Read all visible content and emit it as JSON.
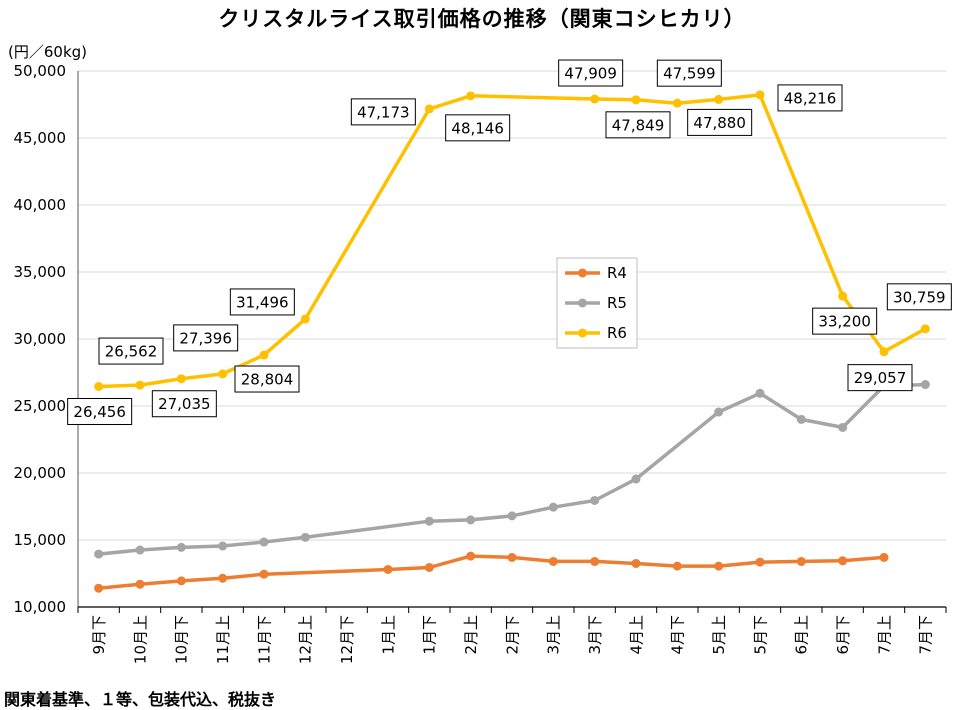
{
  "chart_data": {
    "type": "line",
    "title": "クリスタルライス取引価格の推移（関東コシヒカリ）",
    "ylabel": "(円／60kg)",
    "xlabel": "",
    "ylim": [
      10000,
      50000
    ],
    "y_tick_step": 5000,
    "grid": "horizontal",
    "legend": "inside-center",
    "categories": [
      "9月下",
      "10月上",
      "10月下",
      "11月上",
      "11月下",
      "12月上",
      "12月下",
      "1月上",
      "1月下",
      "2月上",
      "2月下",
      "3月上",
      "3月下",
      "4月上",
      "4月下",
      "5月上",
      "5月下",
      "6月上",
      "6月下",
      "7月上",
      "7月下"
    ],
    "series": [
      {
        "name": "R4",
        "color": "#ED7D31",
        "values": [
          11400,
          11700,
          11950,
          12150,
          12450,
          null,
          null,
          12800,
          12950,
          13800,
          13700,
          13400,
          13400,
          13250,
          13050,
          13050,
          13350,
          13400,
          13450,
          13700,
          null
        ]
      },
      {
        "name": "R5",
        "color": "#A5A5A5",
        "values": [
          13950,
          14250,
          14450,
          14550,
          14850,
          15200,
          null,
          null,
          16400,
          16500,
          16800,
          17450,
          17950,
          19550,
          null,
          24550,
          25950,
          24000,
          23400,
          26500,
          26600
        ]
      },
      {
        "name": "R6",
        "color": "#FFC000",
        "data_labels": true,
        "values": [
          26456,
          26562,
          27035,
          27396,
          28804,
          31496,
          null,
          null,
          47173,
          48146,
          null,
          null,
          47909,
          47849,
          47599,
          47880,
          48216,
          null,
          33200,
          29057,
          30759
        ]
      }
    ]
  },
  "footnote": "関東着基準、１等、包装代込、税抜き"
}
